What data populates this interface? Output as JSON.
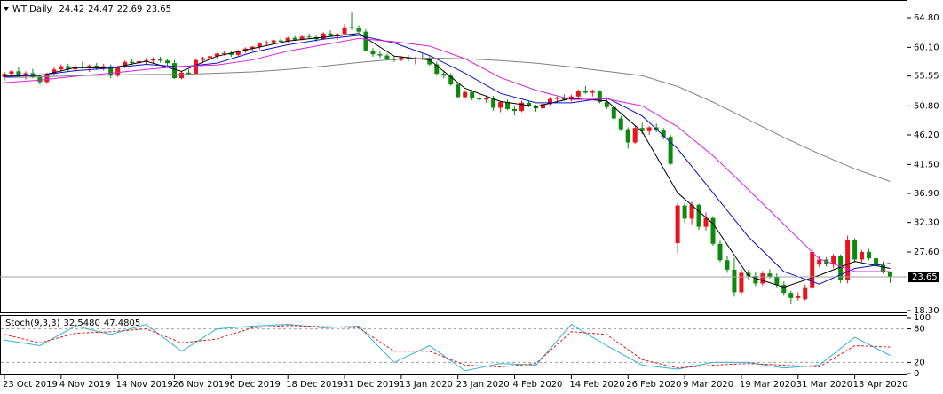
{
  "chart_data": [
    {
      "type": "candlestick",
      "title": "WT,Daily",
      "categories": [
        "23 Oct 2019",
        null,
        null,
        null,
        null,
        null,
        null,
        null,
        "4 Nov 2019",
        null,
        null,
        null,
        null,
        null,
        null,
        null,
        "14 Nov 2019",
        null,
        null,
        null,
        null,
        null,
        null,
        null,
        "26 Nov 2019",
        null,
        null,
        null,
        null,
        null,
        null,
        null,
        "6 Dec 2019",
        null,
        null,
        null,
        null,
        null,
        null,
        null,
        "18 Dec 2019",
        null,
        null,
        null,
        null,
        null,
        null,
        null,
        "31 Dec 2019",
        null,
        null,
        null,
        null,
        null,
        null,
        null,
        "13 Jan 2020",
        null,
        null,
        null,
        null,
        null,
        null,
        null,
        "23 Jan 2020",
        null,
        null,
        null,
        null,
        null,
        null,
        null,
        "4 Feb 2020",
        null,
        null,
        null,
        null,
        null,
        null,
        null,
        "14 Feb 2020",
        null,
        null,
        null,
        null,
        null,
        null,
        null,
        "26 Feb 2020",
        null,
        null,
        null,
        null,
        null,
        null,
        null,
        "9 Mar 2020",
        null,
        null,
        null,
        null,
        null,
        null,
        null,
        "19 Mar 2020",
        null,
        null,
        null,
        null,
        null,
        null,
        null,
        "31 Mar 2020",
        null,
        null,
        null,
        null,
        null,
        null,
        null,
        "13 Apr 2020",
        null,
        null,
        null,
        null,
        null
      ],
      "candles": [
        [
          55.4,
          56.2,
          54.8,
          55.9
        ],
        [
          55.9,
          56.5,
          55.3,
          56.3
        ],
        [
          56.3,
          57.0,
          55.8,
          55.7
        ],
        [
          55.7,
          56.3,
          55.0,
          56.0
        ],
        [
          56.0,
          56.7,
          55.2,
          55.4
        ],
        [
          55.4,
          55.8,
          54.2,
          54.6
        ],
        [
          54.6,
          56.1,
          54.3,
          55.9
        ],
        [
          55.9,
          56.9,
          55.6,
          56.6
        ],
        [
          56.6,
          57.4,
          56.2,
          57.1
        ],
        [
          57.1,
          57.5,
          56.3,
          56.6
        ],
        [
          56.6,
          57.3,
          56.1,
          57.0
        ],
        [
          57.0,
          57.8,
          56.7,
          56.9
        ],
        [
          56.9,
          57.4,
          56.2,
          57.2
        ],
        [
          57.2,
          57.6,
          56.5,
          56.8
        ],
        [
          56.8,
          57.5,
          56.4,
          57.1
        ],
        [
          57.1,
          57.4,
          55.2,
          55.6
        ],
        [
          55.6,
          57.2,
          55.4,
          57.0
        ],
        [
          57.0,
          58.0,
          56.8,
          57.8
        ],
        [
          57.8,
          58.3,
          57.3,
          57.6
        ],
        [
          57.6,
          58.1,
          57.0,
          57.9
        ],
        [
          57.9,
          58.4,
          57.4,
          58.0
        ],
        [
          58.0,
          58.5,
          57.5,
          58.2
        ],
        [
          58.2,
          58.6,
          57.7,
          58.0
        ],
        [
          58.0,
          58.3,
          57.2,
          57.6
        ],
        [
          57.6,
          58.1,
          55.1,
          55.2
        ],
        [
          55.2,
          56.3,
          55.0,
          56.1
        ],
        [
          56.1,
          56.6,
          55.6,
          55.9
        ],
        [
          55.9,
          58.3,
          55.8,
          58.1
        ],
        [
          58.1,
          58.6,
          57.6,
          58.4
        ],
        [
          58.4,
          59.0,
          58.0,
          58.7
        ],
        [
          58.7,
          59.2,
          58.4,
          59.1
        ],
        [
          59.1,
          59.6,
          58.8,
          59.2
        ],
        [
          59.2,
          59.5,
          58.6,
          58.9
        ],
        [
          58.9,
          59.7,
          58.7,
          59.5
        ],
        [
          59.5,
          60.1,
          59.2,
          59.9
        ],
        [
          59.9,
          60.3,
          59.5,
          60.2
        ],
        [
          60.2,
          60.9,
          59.8,
          60.7
        ],
        [
          60.7,
          61.2,
          60.3,
          60.9
        ],
        [
          60.9,
          61.3,
          60.6,
          61.2
        ],
        [
          61.2,
          61.6,
          60.7,
          61.0
        ],
        [
          61.0,
          61.8,
          60.8,
          61.6
        ],
        [
          61.6,
          61.9,
          61.1,
          61.3
        ],
        [
          61.3,
          62.0,
          61.2,
          61.8
        ],
        [
          61.8,
          62.3,
          61.5,
          61.7
        ],
        [
          61.7,
          62.0,
          61.0,
          61.4
        ],
        [
          61.4,
          62.5,
          61.3,
          62.3
        ],
        [
          62.3,
          62.8,
          61.8,
          61.9
        ],
        [
          61.9,
          62.4,
          61.3,
          62.2
        ],
        [
          62.2,
          63.8,
          62.0,
          63.3
        ],
        [
          63.3,
          65.6,
          62.9,
          63.1
        ],
        [
          63.1,
          63.6,
          62.4,
          62.6
        ],
        [
          62.6,
          63.0,
          59.6,
          59.6
        ],
        [
          59.6,
          60.0,
          58.6,
          59.0
        ],
        [
          59.0,
          59.6,
          58.4,
          58.8
        ],
        [
          58.8,
          59.1,
          58.0,
          58.2
        ],
        [
          58.2,
          58.6,
          57.8,
          58.1
        ],
        [
          58.1,
          58.7,
          57.9,
          58.5
        ],
        [
          58.5,
          58.9,
          57.8,
          58.2
        ],
        [
          58.2,
          58.6,
          57.4,
          58.4
        ],
        [
          58.4,
          59.1,
          58.1,
          58.3
        ],
        [
          58.3,
          58.7,
          57.2,
          57.4
        ],
        [
          57.4,
          57.8,
          55.6,
          55.9
        ],
        [
          55.9,
          56.4,
          55.2,
          55.6
        ],
        [
          55.6,
          56.0,
          54.0,
          54.2
        ],
        [
          54.2,
          54.4,
          52.0,
          52.2
        ],
        [
          52.2,
          53.3,
          52.0,
          53.0
        ],
        [
          53.0,
          53.4,
          51.7,
          52.0
        ],
        [
          52.0,
          52.6,
          51.4,
          51.8
        ],
        [
          51.8,
          52.5,
          51.3,
          52.1
        ],
        [
          52.1,
          52.4,
          50.0,
          50.5
        ],
        [
          50.5,
          51.6,
          49.8,
          51.4
        ],
        [
          51.4,
          51.8,
          50.1,
          50.3
        ],
        [
          50.3,
          50.8,
          49.3,
          50.0
        ],
        [
          50.0,
          51.6,
          49.8,
          51.3
        ],
        [
          51.3,
          51.6,
          50.6,
          50.8
        ],
        [
          50.8,
          51.0,
          49.9,
          50.4
        ],
        [
          50.4,
          51.2,
          49.7,
          51.1
        ],
        [
          51.1,
          52.2,
          50.9,
          51.9
        ],
        [
          51.9,
          52.3,
          51.3,
          52.1
        ],
        [
          52.1,
          52.6,
          51.6,
          51.8
        ],
        [
          51.8,
          52.6,
          51.5,
          52.3
        ],
        [
          52.3,
          53.4,
          52.0,
          53.2
        ],
        [
          53.2,
          54.0,
          52.7,
          52.9
        ],
        [
          52.9,
          53.4,
          52.3,
          53.1
        ],
        [
          53.1,
          53.3,
          51.2,
          51.4
        ],
        [
          51.4,
          51.9,
          50.3,
          50.6
        ],
        [
          50.6,
          50.9,
          48.5,
          48.8
        ],
        [
          48.8,
          49.2,
          46.8,
          47.1
        ],
        [
          47.1,
          47.4,
          44.0,
          45.0
        ],
        [
          45.0,
          47.6,
          44.8,
          47.3
        ],
        [
          47.3,
          48.1,
          46.3,
          46.8
        ],
        [
          46.8,
          47.6,
          46.2,
          47.4
        ],
        [
          47.4,
          48.0,
          46.6,
          46.9
        ],
        [
          46.9,
          47.3,
          45.5,
          45.9
        ],
        [
          45.9,
          46.2,
          41.4,
          41.6
        ],
        [
          29.0,
          35.5,
          27.4,
          35.0
        ],
        [
          35.0,
          35.4,
          32.2,
          32.9
        ],
        [
          32.9,
          35.6,
          32.0,
          35.1
        ],
        [
          35.1,
          35.3,
          31.1,
          31.6
        ],
        [
          31.6,
          33.9,
          31.0,
          33.0
        ],
        [
          33.0,
          33.3,
          28.6,
          28.9
        ],
        [
          28.9,
          29.4,
          26.0,
          26.3
        ],
        [
          26.3,
          26.9,
          24.3,
          24.8
        ],
        [
          24.8,
          26.7,
          20.5,
          21.2
        ],
        [
          21.2,
          24.9,
          20.9,
          24.3
        ],
        [
          24.3,
          24.8,
          23.2,
          23.8
        ],
        [
          23.8,
          24.4,
          22.2,
          22.6
        ],
        [
          22.6,
          24.6,
          22.3,
          24.2
        ],
        [
          24.2,
          24.9,
          23.4,
          23.7
        ],
        [
          23.7,
          24.2,
          22.0,
          22.4
        ],
        [
          22.4,
          22.9,
          20.8,
          21.1
        ],
        [
          21.1,
          21.4,
          19.3,
          20.3
        ],
        [
          20.3,
          21.2,
          19.9,
          20.6
        ],
        [
          20.1,
          22.4,
          19.9,
          22.0
        ],
        [
          22.0,
          28.3,
          21.6,
          27.6
        ],
        [
          25.6,
          26.9,
          25.2,
          26.4
        ],
        [
          26.4,
          26.8,
          25.3,
          25.7
        ],
        [
          25.7,
          27.3,
          25.0,
          26.9
        ],
        [
          26.9,
          27.2,
          22.7,
          23.1
        ],
        [
          23.1,
          30.2,
          22.6,
          29.5
        ],
        [
          29.5,
          29.8,
          25.9,
          26.4
        ],
        [
          26.4,
          27.9,
          26.0,
          27.6
        ],
        [
          27.6,
          28.1,
          26.3,
          26.6
        ],
        [
          26.6,
          27.0,
          25.2,
          25.5
        ],
        [
          25.5,
          26.1,
          24.2,
          24.4
        ],
        [
          24.42,
          24.47,
          22.69,
          23.65
        ]
      ],
      "up_color": "#e8141e",
      "down_color": "#0c8a0c",
      "x": [
        0,
        5,
        10,
        15,
        20,
        25,
        30,
        35,
        40,
        45,
        50,
        55,
        60,
        65,
        70,
        75,
        80,
        85,
        90,
        95,
        100,
        105,
        110,
        115,
        120,
        125
      ],
      "lines": [
        {
          "color": "#000000",
          "values": [
            55.6,
            55.6,
            56.9,
            56.8,
            57.9,
            56.3,
            58.7,
            59.9,
            61.1,
            61.7,
            62.3,
            58.7,
            58.1,
            53.6,
            51.5,
            50.7,
            52.0,
            51.6,
            46.7,
            37.0,
            32.1,
            23.8,
            22.0,
            23.9,
            26.1,
            25.0
          ]
        },
        {
          "color": "#1010c8",
          "values": [
            55.4,
            55.7,
            56.4,
            56.8,
            57.4,
            57.0,
            57.6,
            59.3,
            60.5,
            61.4,
            62.0,
            60.8,
            58.8,
            56.0,
            52.8,
            51.3,
            51.3,
            52.1,
            49.2,
            44.0,
            37.0,
            30.0,
            24.5,
            22.5,
            25.0,
            25.8
          ]
        },
        {
          "color": "#e020e0",
          "values": [
            54.5,
            54.9,
            55.5,
            56.0,
            56.6,
            57.1,
            57.3,
            58.1,
            59.5,
            60.5,
            61.5,
            61.0,
            60.3,
            58.3,
            55.3,
            53.3,
            51.8,
            51.9,
            50.8,
            47.5,
            42.9,
            37.5,
            32.0,
            26.5,
            24.5,
            24.5
          ]
        },
        {
          "color": "#808080",
          "values": [
            55.3,
            55.4,
            55.6,
            55.7,
            55.8,
            55.8,
            56.0,
            56.2,
            56.6,
            57.1,
            57.7,
            58.2,
            58.4,
            58.3,
            58.0,
            57.6,
            57.0,
            56.3,
            55.6,
            53.9,
            51.4,
            48.6,
            45.8,
            43.2,
            40.8,
            38.8
          ]
        }
      ],
      "ylim": [
        18.02,
        67.62
      ],
      "yticks": [
        {
          "value": 64.8,
          "label": "64.80"
        },
        {
          "value": 60.1,
          "label": "60.10"
        },
        55.55,
        {
          "value": 50.8,
          "label": "50.80"
        },
        {
          "value": 46.2,
          "label": "46.20"
        },
        {
          "value": 41.5,
          "label": "41.50"
        },
        {
          "value": 36.9,
          "label": "36.90"
        },
        {
          "value": 32.3,
          "label": "32.30"
        },
        {
          "value": 27.6,
          "label": "27.60"
        },
        {
          "value": 18.3,
          "label": "18.30"
        }
      ]
    },
    {
      "type": "line",
      "title": "Stoch(9,3,3)",
      "header_values": [
        {
          "value": 32.548,
          "label": "32.5480"
        },
        {
          "value": 47.4805,
          "label": "47.4805"
        }
      ],
      "x": [
        0,
        5,
        10,
        15,
        20,
        25,
        30,
        35,
        40,
        45,
        50,
        55,
        60,
        65,
        70,
        75,
        80,
        85,
        90,
        95,
        100,
        105,
        110,
        115,
        120,
        125
      ],
      "series": [
        {
          "color": "#30b4d0",
          "dash": false,
          "values": [
            60,
            50,
            85,
            70,
            88,
            40,
            80,
            85,
            88,
            82,
            85,
            20,
            50,
            5,
            18,
            15,
            88,
            50,
            15,
            8,
            20,
            20,
            10,
            15,
            65,
            32.548
          ]
        },
        {
          "color": "#e01818",
          "dash": true,
          "values": [
            70,
            55,
            72,
            75,
            80,
            55,
            62,
            82,
            86,
            84,
            82,
            40,
            40,
            15,
            12,
            18,
            75,
            70,
            25,
            10,
            15,
            18,
            15,
            12,
            50,
            47.4805
          ]
        }
      ],
      "ylim": [
        0,
        100
      ],
      "yticks": [
        100,
        80,
        20,
        0
      ],
      "levels": [
        80,
        20
      ]
    }
  ]
}
